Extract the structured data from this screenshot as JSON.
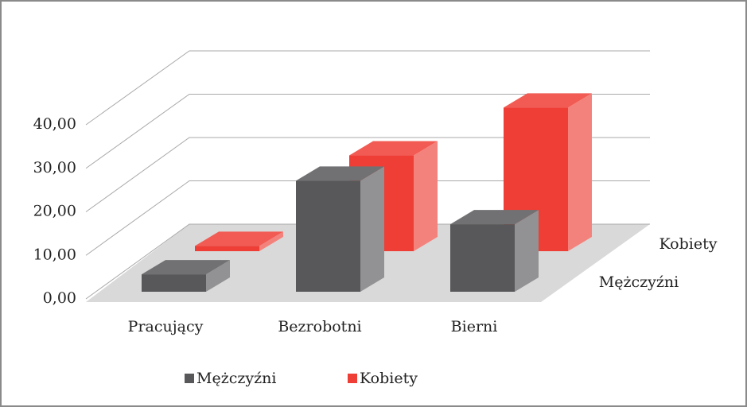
{
  "chart_data": {
    "type": "bar3d",
    "categories": [
      "Pracujący",
      "Bezrobotni",
      "Bierni"
    ],
    "series": [
      {
        "name": "Mężczyźni",
        "color": "#58585a",
        "values": [
          4,
          25.5,
          15.5
        ]
      },
      {
        "name": "Kobiety",
        "color": "#ee3e35",
        "values": [
          1.2,
          22,
          33
        ]
      }
    ],
    "ylim": [
      0,
      40
    ],
    "yticks": [
      {
        "value": 0,
        "label": "0,00"
      },
      {
        "value": 10,
        "label": "10,00"
      },
      {
        "value": 20,
        "label": "20,00"
      },
      {
        "value": 30,
        "label": "30,00"
      },
      {
        "value": 40,
        "label": "40,00"
      }
    ],
    "grid": true,
    "legend": "bottom"
  }
}
